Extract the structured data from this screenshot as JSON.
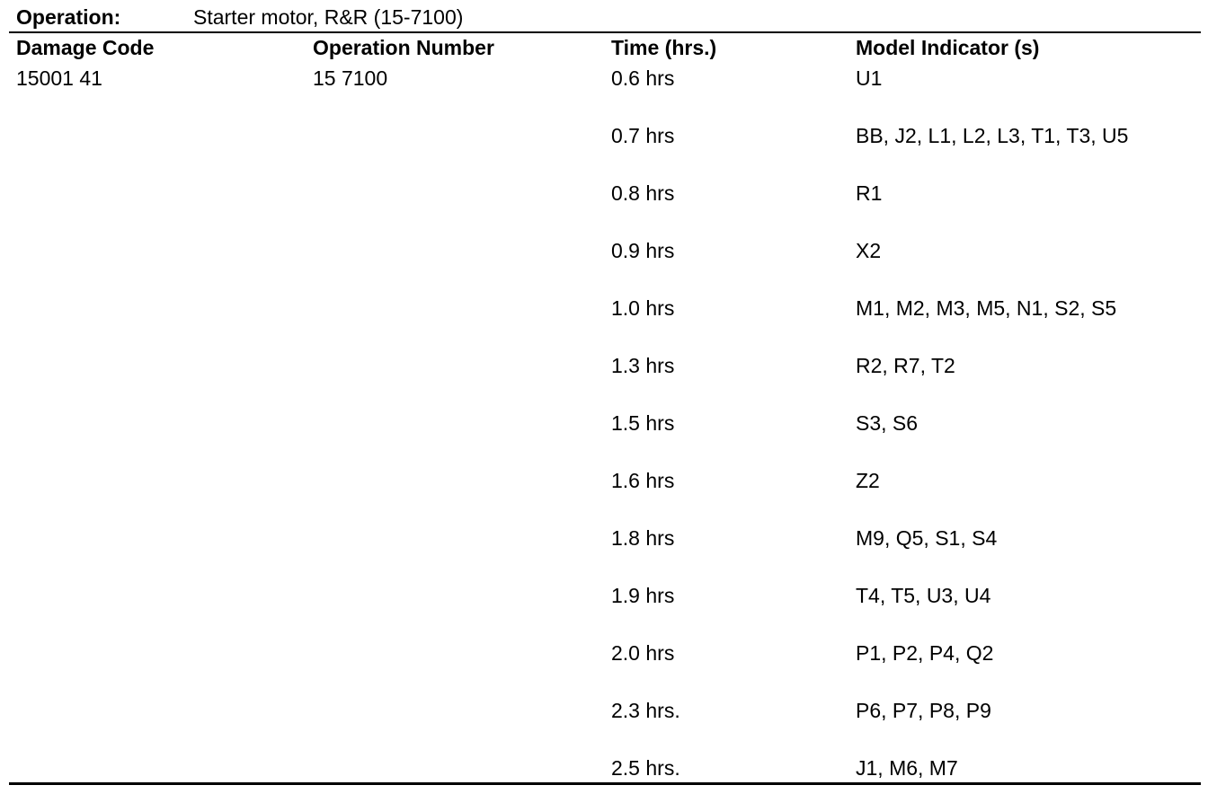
{
  "operation": {
    "label": "Operation:",
    "value": "Starter motor, R&R (15-7100)"
  },
  "table": {
    "headers": [
      "Damage Code",
      "Operation Number",
      "Time (hrs.)",
      "Model Indicator (s)"
    ],
    "damage_code": "15001 41",
    "operation_number": "15 7100",
    "rows": [
      [
        "0.6 hrs",
        "U1"
      ],
      [
        "0.7 hrs",
        "BB, J2, L1, L2, L3, T1, T3, U5"
      ],
      [
        "0.8 hrs",
        "R1"
      ],
      [
        "0.9 hrs",
        "X2"
      ],
      [
        "1.0 hrs",
        "M1, M2, M3, M5, N1, S2, S5"
      ],
      [
        "1.3 hrs",
        "R2, R7, T2"
      ],
      [
        "1.5 hrs",
        "S3, S6"
      ],
      [
        "1.6 hrs",
        "Z2"
      ],
      [
        "1.8 hrs",
        "M9, Q5, S1, S4"
      ],
      [
        "1.9 hrs",
        "T4, T5, U3, U4"
      ],
      [
        "2.0 hrs",
        "P1, P2, P4, Q2"
      ],
      [
        "2.3 hrs.",
        "P6, P7, P8, P9"
      ],
      [
        "2.5 hrs.",
        "J1, M6, M7"
      ]
    ]
  }
}
